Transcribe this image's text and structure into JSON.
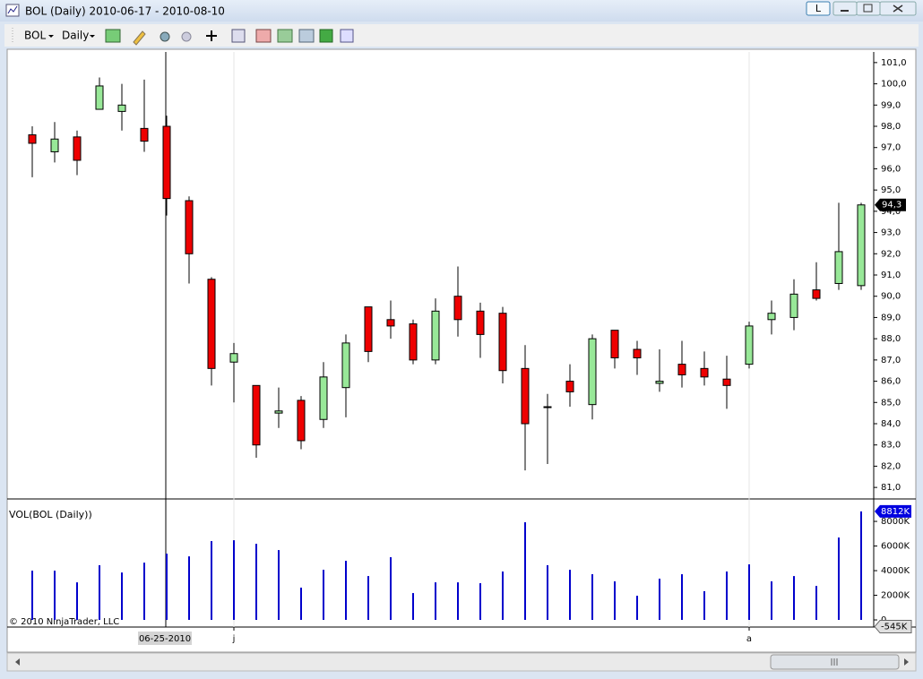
{
  "window": {
    "title": "BOL (Daily)  2010-06-17 - 2010-08-10",
    "link_button": "L"
  },
  "toolbar": {
    "instrument": "BOL",
    "period": "Daily"
  },
  "footer": "© 2010 NinjaTrader, LLC",
  "chart_data": [
    {
      "type": "candlestick",
      "categories": [
        null,
        null,
        null,
        null,
        null,
        null,
        "06-25-2010",
        null,
        null,
        "j",
        null,
        null,
        null,
        null,
        null,
        null,
        null,
        null,
        null,
        null,
        null,
        null,
        null,
        null,
        null,
        null,
        null,
        null,
        null,
        null,
        null,
        null,
        "a",
        null,
        null,
        null,
        null,
        null
      ],
      "open": [
        97.6,
        96.8,
        97.5,
        98.8,
        98.7,
        97.9,
        98.0,
        94.5,
        90.8,
        86.9,
        85.8,
        84.5,
        85.1,
        84.2,
        85.7,
        89.5,
        88.9,
        88.7,
        87.0,
        90.0,
        89.3,
        89.2,
        86.6,
        84.8,
        86.0,
        84.9,
        88.4,
        87.5,
        85.9,
        86.8,
        86.6,
        86.1,
        86.8,
        88.9,
        89.0,
        90.3,
        90.6,
        90.5
      ],
      "high": [
        98.0,
        98.2,
        97.8,
        100.3,
        100.0,
        100.2,
        98.5,
        94.7,
        90.9,
        87.8,
        85.8,
        85.7,
        85.3,
        86.9,
        88.2,
        89.5,
        89.8,
        88.9,
        89.9,
        91.4,
        89.7,
        89.5,
        87.7,
        85.4,
        86.8,
        88.2,
        88.4,
        87.9,
        87.5,
        87.9,
        87.4,
        87.2,
        88.8,
        89.8,
        90.8,
        91.6,
        94.4,
        94.4
      ],
      "low": [
        95.6,
        96.3,
        95.7,
        98.8,
        97.8,
        96.8,
        93.8,
        90.6,
        85.8,
        85.0,
        82.4,
        83.8,
        82.8,
        83.8,
        84.3,
        86.9,
        88.0,
        86.8,
        86.8,
        88.1,
        87.1,
        85.9,
        81.8,
        82.1,
        84.8,
        84.2,
        86.6,
        86.3,
        85.5,
        85.7,
        85.8,
        84.7,
        86.6,
        88.2,
        88.4,
        89.8,
        90.3,
        90.3
      ],
      "close": [
        97.2,
        97.4,
        96.4,
        99.9,
        99.0,
        97.3,
        94.6,
        92.0,
        86.6,
        87.3,
        83.0,
        84.6,
        83.2,
        86.2,
        87.8,
        87.4,
        88.6,
        87.0,
        89.3,
        88.9,
        88.2,
        86.5,
        84.0,
        84.8,
        85.5,
        88.0,
        87.1,
        87.1,
        86.0,
        86.3,
        86.2,
        85.8,
        88.6,
        89.2,
        90.1,
        89.9,
        92.1,
        94.3
      ],
      "up_color": "#98e898",
      "down_color": "#ee0000",
      "ylim": [
        80.5,
        101.5
      ],
      "yticks": [
        {
          "value": 81,
          "label": "81,0"
        },
        {
          "value": 82,
          "label": "82,0"
        },
        {
          "value": 83,
          "label": "83,0"
        },
        {
          "value": 84,
          "label": "84,0"
        },
        {
          "value": 85,
          "label": "85,0"
        },
        {
          "value": 86,
          "label": "86,0"
        },
        {
          "value": 87,
          "label": "87,0"
        },
        {
          "value": 88,
          "label": "88,0"
        },
        {
          "value": 89,
          "label": "89,0"
        },
        {
          "value": 90,
          "label": "90,0"
        },
        {
          "value": 91,
          "label": "91,0"
        },
        {
          "value": 92,
          "label": "92,0"
        },
        {
          "value": 93,
          "label": "93,0"
        },
        {
          "value": 94,
          "label": "94,0"
        },
        {
          "value": 95,
          "label": "95,0"
        },
        {
          "value": 96,
          "label": "96,0"
        },
        {
          "value": 97,
          "label": "97,0"
        },
        {
          "value": 98,
          "label": "98,0"
        },
        {
          "value": 99,
          "label": "99,0"
        },
        {
          "value": 100,
          "label": "100,0"
        },
        {
          "value": 101,
          "label": "101,0"
        }
      ],
      "last_price": {
        "value": 94.3,
        "label": "94,3"
      }
    },
    {
      "type": "bar",
      "title": "VOL(BOL (Daily))",
      "values": [
        4000,
        4000,
        3050,
        4440,
        3850,
        4650,
        5380,
        5160,
        6400,
        6470,
        6180,
        5670,
        2620,
        4070,
        4800,
        3560,
        5090,
        2180,
        3050,
        3050,
        2980,
        3930,
        7930,
        4440,
        4070,
        3710,
        3130,
        1960,
        3350,
        3710,
        2330,
        3930,
        4510,
        3130,
        3560,
        2760,
        6690,
        8812
      ],
      "last_label": "8812K",
      "color": "#0000cc",
      "ylim": [
        -580,
        9750
      ],
      "yticks": [
        0,
        {
          "value": 2000,
          "label": "2000K"
        },
        {
          "value": 4000,
          "label": "4000K"
        },
        {
          "value": 6000,
          "label": "6000K"
        },
        {
          "value": 8000,
          "label": "8000K"
        }
      ],
      "crosshair_value": {
        "value": -545,
        "label": "-545K"
      }
    }
  ]
}
